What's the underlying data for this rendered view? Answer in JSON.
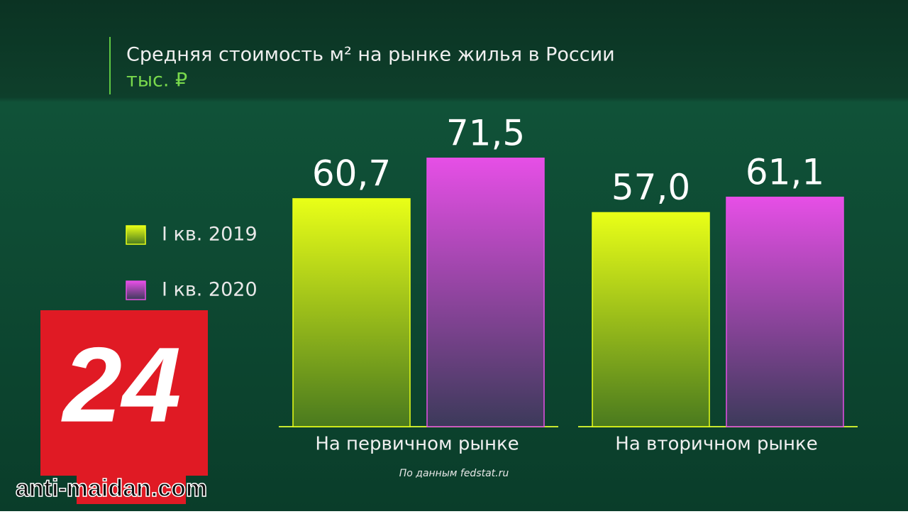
{
  "chart_data": {
    "type": "bar",
    "title": "Средняя стоимость м² на рынке жилья в России",
    "subtitle": "тыс. ₽",
    "categories": [
      "На первичном рынке",
      "На вторичном рынке"
    ],
    "series": [
      {
        "name": "I кв. 2019",
        "color": "#e9ff17",
        "values": [
          60.7,
          57.0
        ],
        "value_labels": [
          "60,7",
          "57,0"
        ]
      },
      {
        "name": "I кв. 2020",
        "color": "#e64fe6",
        "values": [
          71.5,
          61.1
        ],
        "value_labels": [
          "71,5",
          "61,1"
        ]
      }
    ],
    "source": "По данным fedstat.ru"
  },
  "logo": "24",
  "watermark": "anti-maidan.com"
}
